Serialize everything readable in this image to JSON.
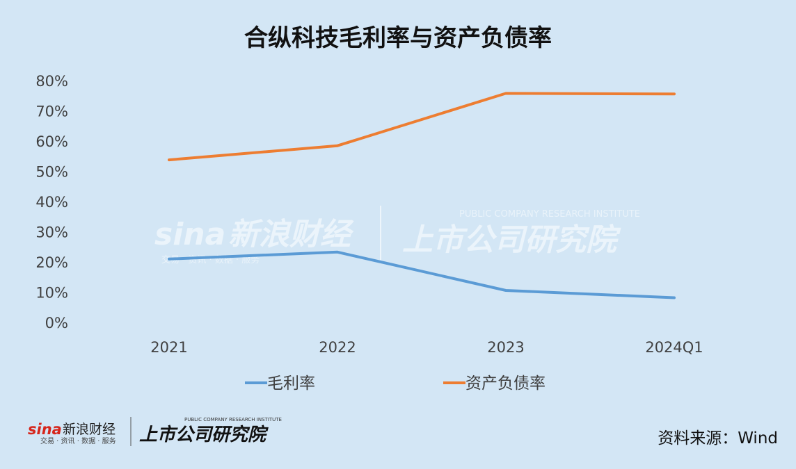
{
  "chart_data": {
    "type": "line",
    "title": "合纵科技毛利率与资产负债率",
    "categories": [
      "2021",
      "2022",
      "2023",
      "2024Q1"
    ],
    "series": [
      {
        "name": "毛利率",
        "color": "#5b9bd5",
        "values": [
          21.2,
          23.5,
          10.8,
          8.4
        ]
      },
      {
        "name": "资产负债率",
        "color": "#ed7d31",
        "values": [
          54.0,
          58.7,
          76.0,
          75.8
        ]
      }
    ],
    "ylim": [
      0,
      80
    ],
    "yticks": [
      "0%",
      "10%",
      "20%",
      "30%",
      "40%",
      "50%",
      "60%",
      "70%",
      "80%"
    ],
    "grid": false,
    "legend": "bottom"
  },
  "source": "资料来源：Wind",
  "watermark": {
    "sina": "sina",
    "brand": "新浪财经",
    "services": "交易 · 资讯 · 数据 · 服务",
    "institute": "上市公司研究院",
    "institute_en": "PUBLIC COMPANY RESEARCH INSTITUTE"
  }
}
